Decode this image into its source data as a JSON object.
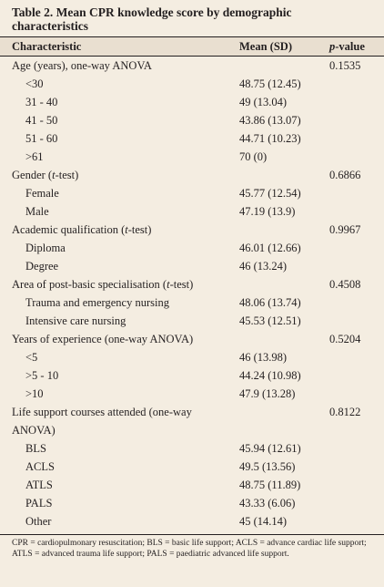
{
  "title": "Table 2. Mean CPR knowledge score by demographic characteristics",
  "header": {
    "characteristic": "Characteristic",
    "mean": "Mean (SD)",
    "p_value": [
      "p",
      "-value"
    ]
  },
  "groups": [
    {
      "label": [
        "Age (years), one-way ANOVA"
      ],
      "p_value": "0.1535",
      "items": [
        {
          "label": "<30",
          "mean": "48.75 (12.45)"
        },
        {
          "label": "31 - 40",
          "mean": "49 (13.04)"
        },
        {
          "label": "41 - 50",
          "mean": "43.86 (13.07)"
        },
        {
          "label": "51 - 60",
          "mean": "44.71 (10.23)"
        },
        {
          "label": ">61",
          "mean": "70 (0)"
        }
      ]
    },
    {
      "label": [
        "Gender (",
        "t",
        "-test)"
      ],
      "p_value": "0.6866",
      "items": [
        {
          "label": "Female",
          "mean": "45.77 (12.54)"
        },
        {
          "label": "Male",
          "mean": "47.19 (13.9)"
        }
      ]
    },
    {
      "label": [
        "Academic qualification (",
        "t",
        "-test)"
      ],
      "p_value": "0.9967",
      "items": [
        {
          "label": "Diploma",
          "mean": "46.01 (12.66)"
        },
        {
          "label": "Degree",
          "mean": "46 (13.24)"
        }
      ]
    },
    {
      "label": [
        "Area of post-basic specialisation (",
        "t",
        "-test)"
      ],
      "p_value": "0.4508",
      "items": [
        {
          "label": "Trauma and emergency nursing",
          "mean": "48.06 (13.74)"
        },
        {
          "label": "Intensive care nursing",
          "mean": "45.53 (12.51)"
        }
      ]
    },
    {
      "label": [
        "Years of experience (one-way ANOVA)"
      ],
      "p_value": "0.5204",
      "items": [
        {
          "label": "<5",
          "mean": "46 (13.98)"
        },
        {
          "label": ">5 - 10",
          "mean": "44.24 (10.98)"
        },
        {
          "label": ">10",
          "mean": "47.9 (13.28)"
        }
      ]
    },
    {
      "label": [
        "Life support courses attended (one-way ANOVA)"
      ],
      "p_value": "0.8122",
      "items": [
        {
          "label": "BLS",
          "mean": "45.94 (12.61)"
        },
        {
          "label": "ACLS",
          "mean": "49.5 (13.56)"
        },
        {
          "label": "ATLS",
          "mean": "48.75 (11.89)"
        },
        {
          "label": "PALS",
          "mean": "43.33 (6.06)"
        },
        {
          "label": "Other",
          "mean": "45 (14.14)"
        }
      ]
    }
  ],
  "note": "CPR = cardiopulmonary resuscitation; BLS = basic life support; ACLS = advance cardiac life support; ATLS = advanced trauma life support; PALS = paediatric advanced life support."
}
